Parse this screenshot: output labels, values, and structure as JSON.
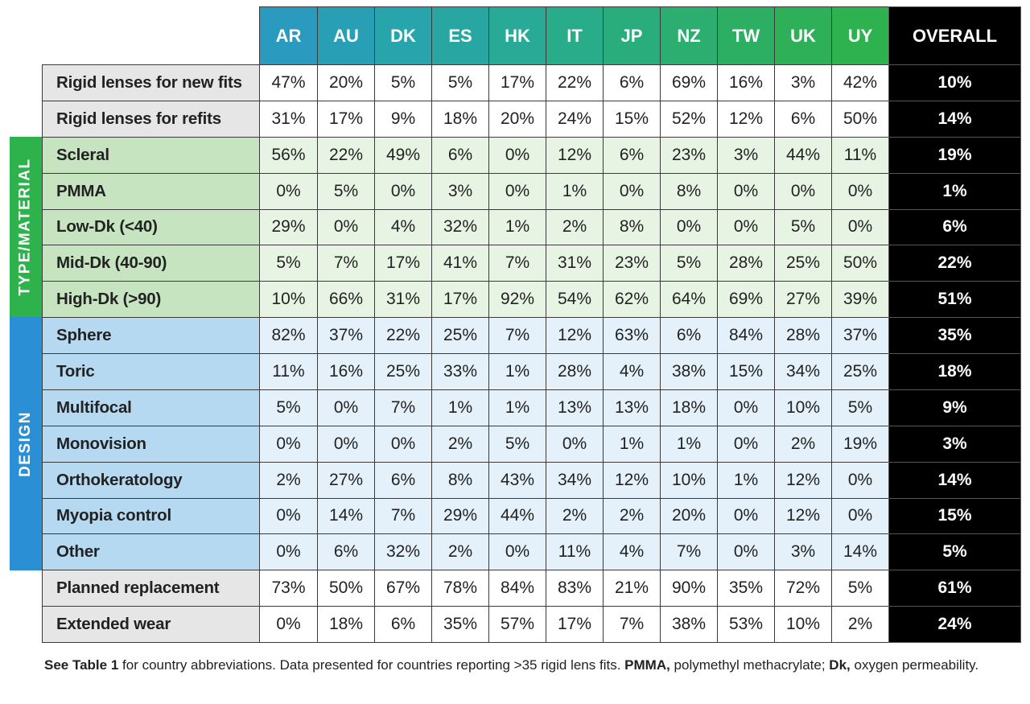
{
  "table": {
    "columns": [
      "AR",
      "AU",
      "DK",
      "ES",
      "HK",
      "IT",
      "JP",
      "NZ",
      "TW",
      "UK",
      "UY",
      "OVERALL"
    ],
    "sections": [
      {
        "rows": [
          {
            "label": "Rigid lenses for new fits",
            "cells": [
              "47%",
              "20%",
              "5%",
              "5%",
              "17%",
              "22%",
              "6%",
              "69%",
              "16%",
              "3%",
              "42%",
              "10%"
            ]
          },
          {
            "label": "Rigid lenses for refits",
            "cells": [
              "31%",
              "17%",
              "9%",
              "18%",
              "20%",
              "24%",
              "15%",
              "52%",
              "12%",
              "6%",
              "50%",
              "14%"
            ]
          }
        ]
      },
      {
        "label": "TYPE/MATERIAL",
        "rows": [
          {
            "label": "Scleral",
            "cells": [
              "56%",
              "22%",
              "49%",
              "6%",
              "0%",
              "12%",
              "6%",
              "23%",
              "3%",
              "44%",
              "11%",
              "19%"
            ]
          },
          {
            "label": "PMMA",
            "cells": [
              "0%",
              "5%",
              "0%",
              "3%",
              "0%",
              "1%",
              "0%",
              "8%",
              "0%",
              "0%",
              "0%",
              "1%"
            ]
          },
          {
            "label": "Low-Dk (<40)",
            "cells": [
              "29%",
              "0%",
              "4%",
              "32%",
              "1%",
              "2%",
              "8%",
              "0%",
              "0%",
              "5%",
              "0%",
              "6%"
            ]
          },
          {
            "label": "Mid-Dk (40-90)",
            "cells": [
              "5%",
              "7%",
              "17%",
              "41%",
              "7%",
              "31%",
              "23%",
              "5%",
              "28%",
              "25%",
              "50%",
              "22%"
            ]
          },
          {
            "label": "High-Dk (>90)",
            "cells": [
              "10%",
              "66%",
              "31%",
              "17%",
              "92%",
              "54%",
              "62%",
              "64%",
              "69%",
              "27%",
              "39%",
              "51%"
            ]
          }
        ]
      },
      {
        "label": "DESIGN",
        "rows": [
          {
            "label": "Sphere",
            "cells": [
              "82%",
              "37%",
              "22%",
              "25%",
              "7%",
              "12%",
              "63%",
              "6%",
              "84%",
              "28%",
              "37%",
              "35%"
            ]
          },
          {
            "label": "Toric",
            "cells": [
              "11%",
              "16%",
              "25%",
              "33%",
              "1%",
              "28%",
              "4%",
              "38%",
              "15%",
              "34%",
              "25%",
              "18%"
            ]
          },
          {
            "label": "Multifocal",
            "cells": [
              "5%",
              "0%",
              "7%",
              "1%",
              "1%",
              "13%",
              "13%",
              "18%",
              "0%",
              "10%",
              "5%",
              "9%"
            ]
          },
          {
            "label": "Monovision",
            "cells": [
              "0%",
              "0%",
              "0%",
              "2%",
              "5%",
              "0%",
              "1%",
              "1%",
              "0%",
              "2%",
              "19%",
              "3%"
            ]
          },
          {
            "label": "Orthokeratology",
            "cells": [
              "2%",
              "27%",
              "6%",
              "8%",
              "43%",
              "34%",
              "12%",
              "10%",
              "1%",
              "12%",
              "0%",
              "14%"
            ]
          },
          {
            "label": "Myopia control",
            "cells": [
              "0%",
              "14%",
              "7%",
              "29%",
              "44%",
              "2%",
              "2%",
              "20%",
              "0%",
              "12%",
              "0%",
              "15%"
            ]
          },
          {
            "label": "Other",
            "cells": [
              "0%",
              "6%",
              "32%",
              "2%",
              "0%",
              "11%",
              "4%",
              "7%",
              "0%",
              "3%",
              "14%",
              "5%"
            ]
          }
        ]
      },
      {
        "rows": [
          {
            "label": "Planned replacement",
            "cells": [
              "73%",
              "50%",
              "67%",
              "78%",
              "84%",
              "83%",
              "21%",
              "90%",
              "35%",
              "72%",
              "5%",
              "61%"
            ]
          },
          {
            "label": "Extended wear",
            "cells": [
              "0%",
              "18%",
              "6%",
              "35%",
              "57%",
              "17%",
              "7%",
              "38%",
              "53%",
              "10%",
              "2%",
              "24%"
            ]
          }
        ]
      }
    ]
  },
  "footnote": [
    {
      "text": "See Table 1",
      "bold": true
    },
    {
      "text": " for country abbreviations. Data presented for countries reporting >35 rigid lens fits. "
    },
    {
      "text": "PMMA,",
      "bold": true
    },
    {
      "text": " polymethyl methacrylate; "
    },
    {
      "text": "Dk,",
      "bold": true
    },
    {
      "text": " oxygen permeability."
    }
  ]
}
